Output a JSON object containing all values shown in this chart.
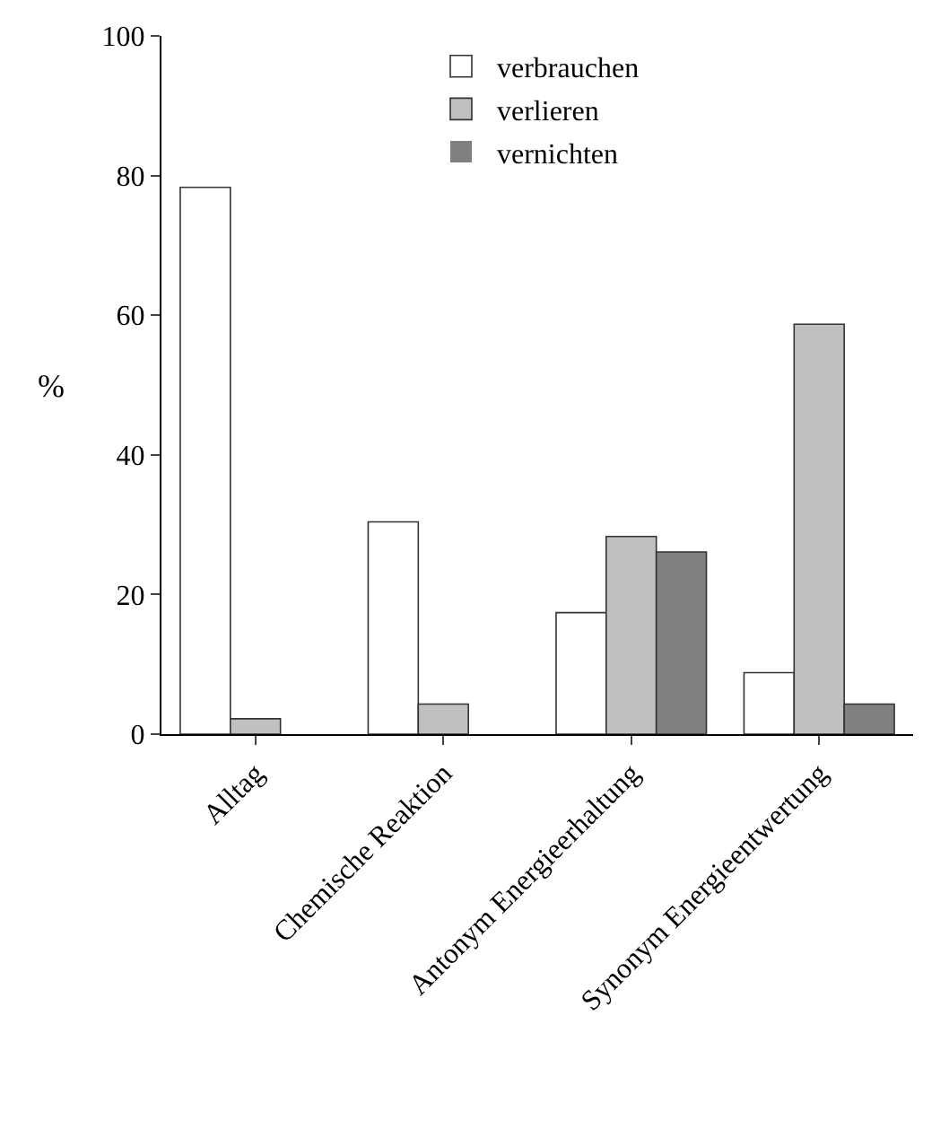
{
  "chart_data": {
    "type": "bar",
    "ylabel": "%",
    "categories": [
      "Alltag",
      "Chemische Reaktion",
      "Antonym Energieerhaltung",
      "Synonym Energieentwertung"
    ],
    "series": [
      {
        "name": "verbrauchen",
        "color": "#ffffff",
        "values": [
          78.3,
          30.4,
          17.4,
          8.8
        ]
      },
      {
        "name": "verlieren",
        "color": "#c0c0c0",
        "values": [
          2.2,
          4.3,
          28.3,
          58.7
        ]
      },
      {
        "name": "vernichten",
        "color": "#808080",
        "values": [
          0,
          0,
          26.1,
          4.3
        ]
      }
    ],
    "ylim": [
      0,
      100
    ],
    "yticks": [
      0,
      20,
      40,
      60,
      80,
      100
    ],
    "legend": "top"
  }
}
